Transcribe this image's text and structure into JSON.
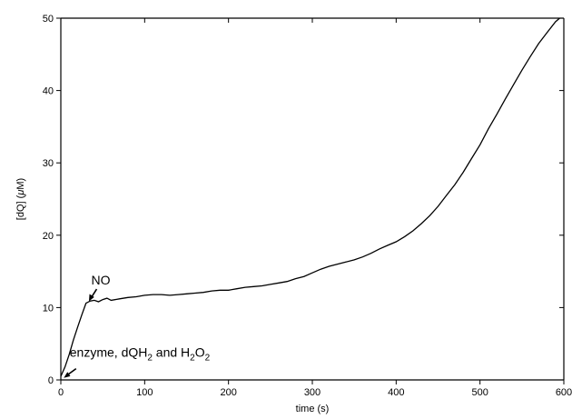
{
  "chart_data": {
    "type": "line",
    "title": "",
    "xlabel": "time (s)",
    "ylabel_parts": [
      "[dQ] (",
      "μ",
      "M)"
    ],
    "xlim": [
      0,
      600
    ],
    "ylim": [
      0,
      50
    ],
    "xticks": [
      0,
      100,
      200,
      300,
      400,
      500,
      600
    ],
    "yticks": [
      0,
      10,
      20,
      30,
      40,
      50
    ],
    "grid": false,
    "series": [
      {
        "x": [
          0,
          5,
          10,
          15,
          20,
          25,
          30,
          35,
          40,
          45,
          50,
          55,
          60,
          70,
          80,
          90,
          100,
          110,
          120,
          130,
          140,
          150,
          160,
          170,
          180,
          190,
          200,
          210,
          220,
          230,
          240,
          250,
          260,
          270,
          280,
          290,
          300,
          310,
          320,
          330,
          340,
          350,
          360,
          370,
          380,
          390,
          400,
          410,
          420,
          430,
          440,
          450,
          460,
          470,
          480,
          490,
          500,
          510,
          520,
          530,
          540,
          550,
          560,
          570,
          580,
          590,
          595
        ],
        "y": [
          0.5,
          1.8,
          3.5,
          5.5,
          7.3,
          9.0,
          10.6,
          10.9,
          11.0,
          10.8,
          11.1,
          11.3,
          11.0,
          11.2,
          11.4,
          11.5,
          11.7,
          11.8,
          11.8,
          11.7,
          11.8,
          11.9,
          12.0,
          12.1,
          12.3,
          12.4,
          12.4,
          12.6,
          12.8,
          12.9,
          13.0,
          13.2,
          13.4,
          13.6,
          14.0,
          14.3,
          14.8,
          15.3,
          15.7,
          16.0,
          16.3,
          16.6,
          17.0,
          17.5,
          18.1,
          18.6,
          19.1,
          19.8,
          20.6,
          21.6,
          22.7,
          24.0,
          25.5,
          27.0,
          28.7,
          30.6,
          32.5,
          34.7,
          36.7,
          38.8,
          40.8,
          42.8,
          44.7,
          46.5,
          48.0,
          49.5,
          50.0
        ]
      }
    ],
    "annotations": [
      {
        "id": "no",
        "text": "NO",
        "x": 33,
        "y": 10.8
      },
      {
        "id": "enzyme",
        "text_parts": [
          "enzyme, dQH",
          "2",
          " and H",
          "2",
          "O",
          "2"
        ],
        "x": 3,
        "y": 0.3
      }
    ]
  }
}
